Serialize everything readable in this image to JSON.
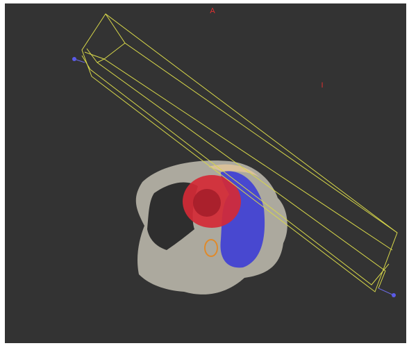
{
  "labels": {
    "top": "A",
    "right": "I"
  }
}
